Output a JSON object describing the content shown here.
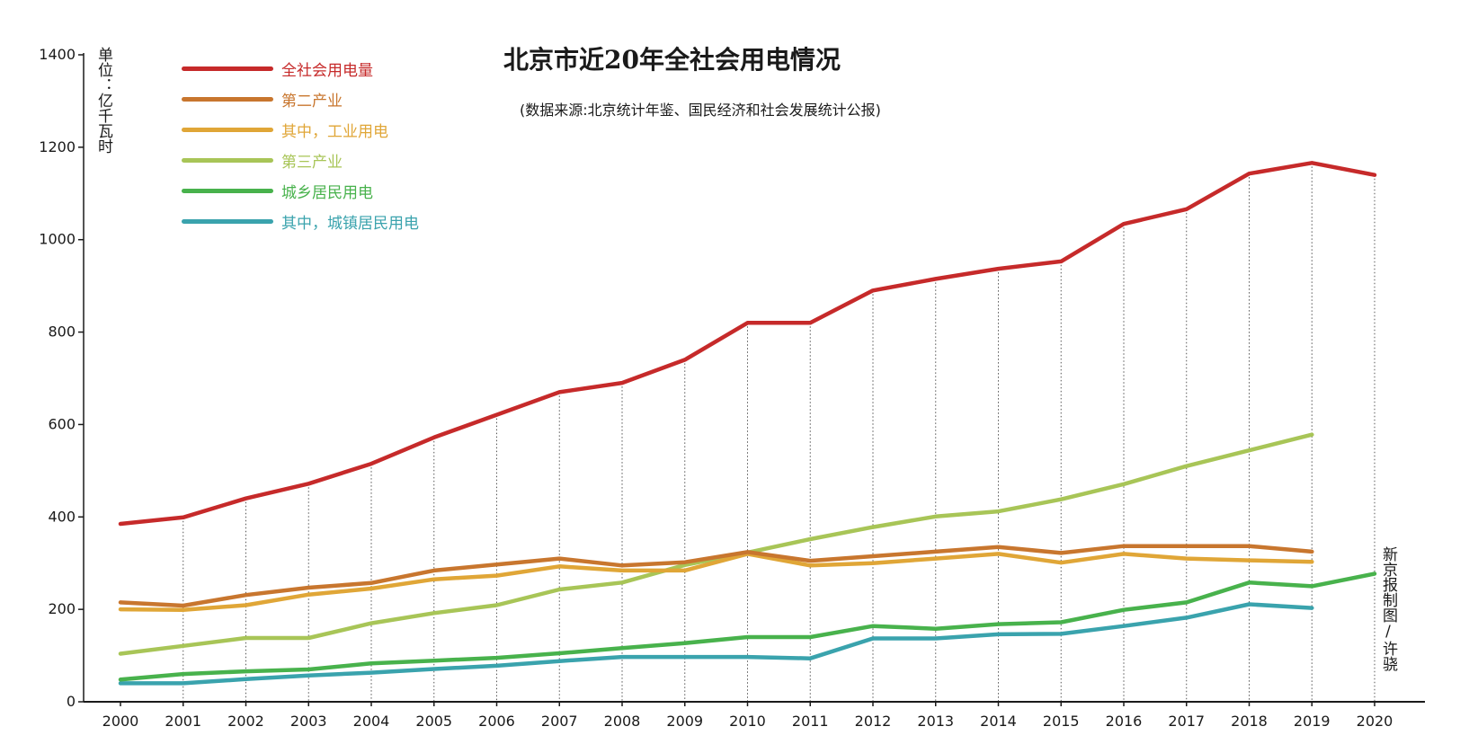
{
  "chart_data": {
    "type": "line",
    "title": "北京市近20年全社会用电情况",
    "subtitle": "(数据来源:北京统计年鉴、国民经济和社会发展统计公报)",
    "unit_label": "单位：亿千瓦时",
    "credit": "新京报制图/许骁",
    "xlabel": "",
    "ylabel": "单位：亿千瓦时",
    "ylim": [
      0,
      1400
    ],
    "yticks": [
      0,
      200,
      400,
      600,
      800,
      1000,
      1200,
      1400
    ],
    "categories": [
      "2000",
      "2001",
      "2002",
      "2003",
      "2004",
      "2005",
      "2006",
      "2007",
      "2008",
      "2009",
      "2010",
      "2011",
      "2012",
      "2013",
      "2014",
      "2015",
      "2016",
      "2017",
      "2018",
      "2019",
      "2020"
    ],
    "grid": "vertical dotted lines at each year",
    "legend_position": "top-left",
    "series": [
      {
        "name": "全社会用电量",
        "color": "#c62a2a",
        "values": [
          385,
          399,
          440,
          472,
          515,
          572,
          621,
          670,
          690,
          740,
          820,
          820,
          890,
          915,
          937,
          953,
          1034,
          1066,
          1143,
          1166,
          1140
        ]
      },
      {
        "name": "第二产业",
        "color": "#c8762e",
        "values": [
          215,
          208,
          231,
          247,
          257,
          284,
          297,
          310,
          295,
          302,
          324,
          305,
          315,
          325,
          335,
          322,
          337,
          337,
          337,
          325,
          null
        ]
      },
      {
        "name": "其中，工业用电",
        "color": "#e0a637",
        "values": [
          200,
          199,
          209,
          232,
          245,
          265,
          273,
          293,
          284,
          284,
          320,
          295,
          300,
          310,
          320,
          301,
          320,
          310,
          306,
          303,
          null
        ]
      },
      {
        "name": "第三产业",
        "color": "#a8c557",
        "values": [
          104,
          121,
          138,
          138,
          170,
          192,
          209,
          243,
          258,
          296,
          323,
          352,
          378,
          401,
          412,
          438,
          471,
          510,
          544,
          578,
          null
        ]
      },
      {
        "name": "城乡居民用电",
        "color": "#48b24c",
        "values": [
          48,
          60,
          66,
          70,
          83,
          89,
          95,
          105,
          116,
          127,
          140,
          140,
          164,
          158,
          168,
          172,
          199,
          215,
          258,
          250,
          277
        ]
      },
      {
        "name": "其中，城镇居民用电",
        "color": "#3aa3ad",
        "values": [
          40,
          40,
          49,
          57,
          63,
          71,
          78,
          88,
          97,
          97,
          97,
          94,
          137,
          137,
          146,
          147,
          164,
          182,
          211,
          203,
          null
        ]
      }
    ]
  }
}
